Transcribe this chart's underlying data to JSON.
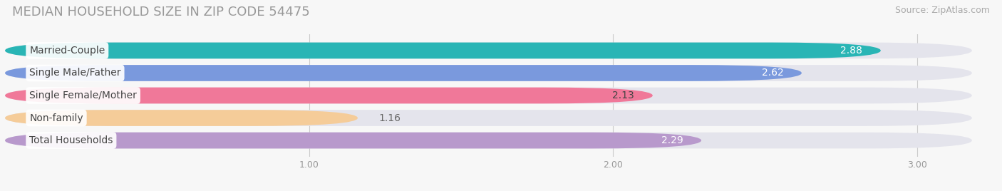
{
  "title": "MEDIAN HOUSEHOLD SIZE IN ZIP CODE 54475",
  "source": "Source: ZipAtlas.com",
  "categories": [
    "Married-Couple",
    "Single Male/Father",
    "Single Female/Mother",
    "Non-family",
    "Total Households"
  ],
  "values": [
    2.88,
    2.62,
    2.13,
    1.16,
    2.29
  ],
  "bar_colors": [
    "#29b5b5",
    "#7a99dd",
    "#f07899",
    "#f5cc99",
    "#b899cc"
  ],
  "xlim_min": 0,
  "xlim_max": 3.18,
  "xaxis_max": 3.0,
  "xticks": [
    1.0,
    2.0,
    3.0
  ],
  "background_color": "#f7f7f7",
  "bar_bg_color": "#e4e4ec",
  "title_fontsize": 13,
  "source_fontsize": 9,
  "label_fontsize": 10,
  "value_fontsize": 10,
  "value_inside_color": [
    "#ffffff",
    "#ffffff",
    "#555555",
    "#555555",
    "#ffffff"
  ],
  "value_outside_color": "#555555"
}
